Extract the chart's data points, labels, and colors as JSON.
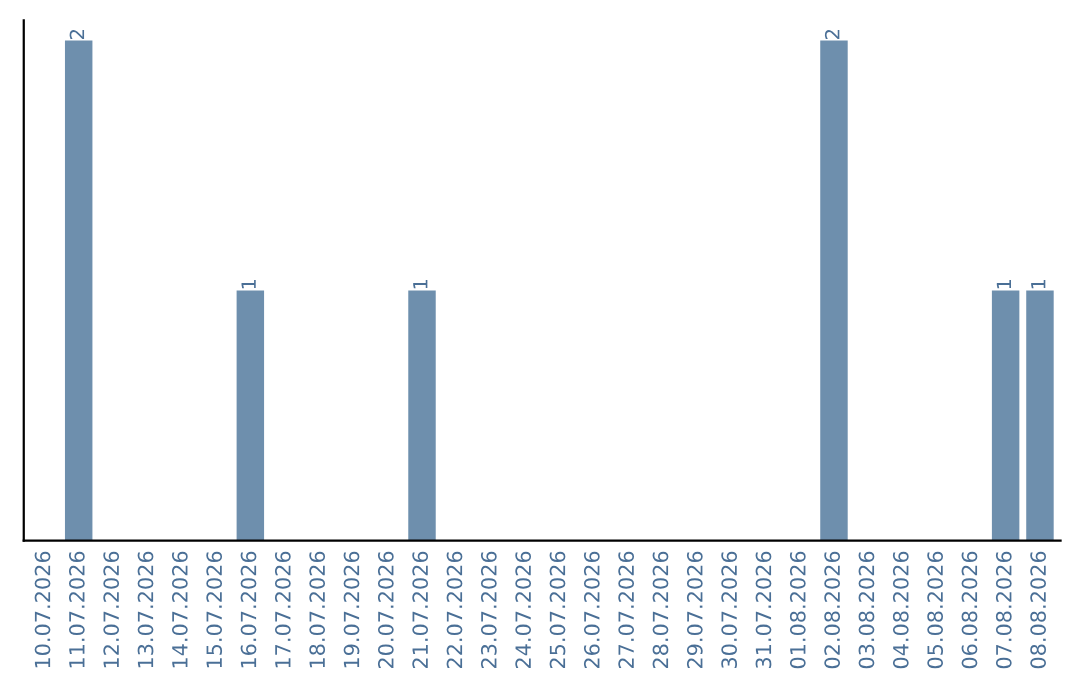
{
  "chart_data": {
    "type": "bar",
    "categories": [
      "10.07.2026",
      "11.07.2026",
      "12.07.2026",
      "13.07.2026",
      "14.07.2026",
      "15.07.2026",
      "16.07.2026",
      "17.07.2026",
      "18.07.2026",
      "19.07.2026",
      "20.07.2026",
      "21.07.2026",
      "22.07.2026",
      "23.07.2026",
      "24.07.2026",
      "25.07.2026",
      "26.07.2026",
      "27.07.2026",
      "28.07.2026",
      "29.07.2026",
      "30.07.2026",
      "31.07.2026",
      "01.08.2026",
      "02.08.2026",
      "03.08.2026",
      "04.08.2026",
      "05.08.2026",
      "06.08.2026",
      "07.08.2026",
      "08.08.2026"
    ],
    "values": [
      0,
      2,
      0,
      0,
      0,
      0,
      1,
      0,
      0,
      0,
      0,
      1,
      0,
      0,
      0,
      0,
      0,
      0,
      0,
      0,
      0,
      0,
      0,
      2,
      0,
      0,
      0,
      0,
      1,
      1
    ],
    "value_labels": [
      null,
      "2",
      null,
      null,
      null,
      null,
      "1",
      null,
      null,
      null,
      null,
      "1",
      null,
      null,
      null,
      null,
      null,
      null,
      null,
      null,
      null,
      null,
      null,
      "2",
      null,
      null,
      null,
      null,
      "1",
      "1"
    ],
    "color": "#6e8fad",
    "tick_labels": "x",
    "grid": false,
    "legend": false
  }
}
